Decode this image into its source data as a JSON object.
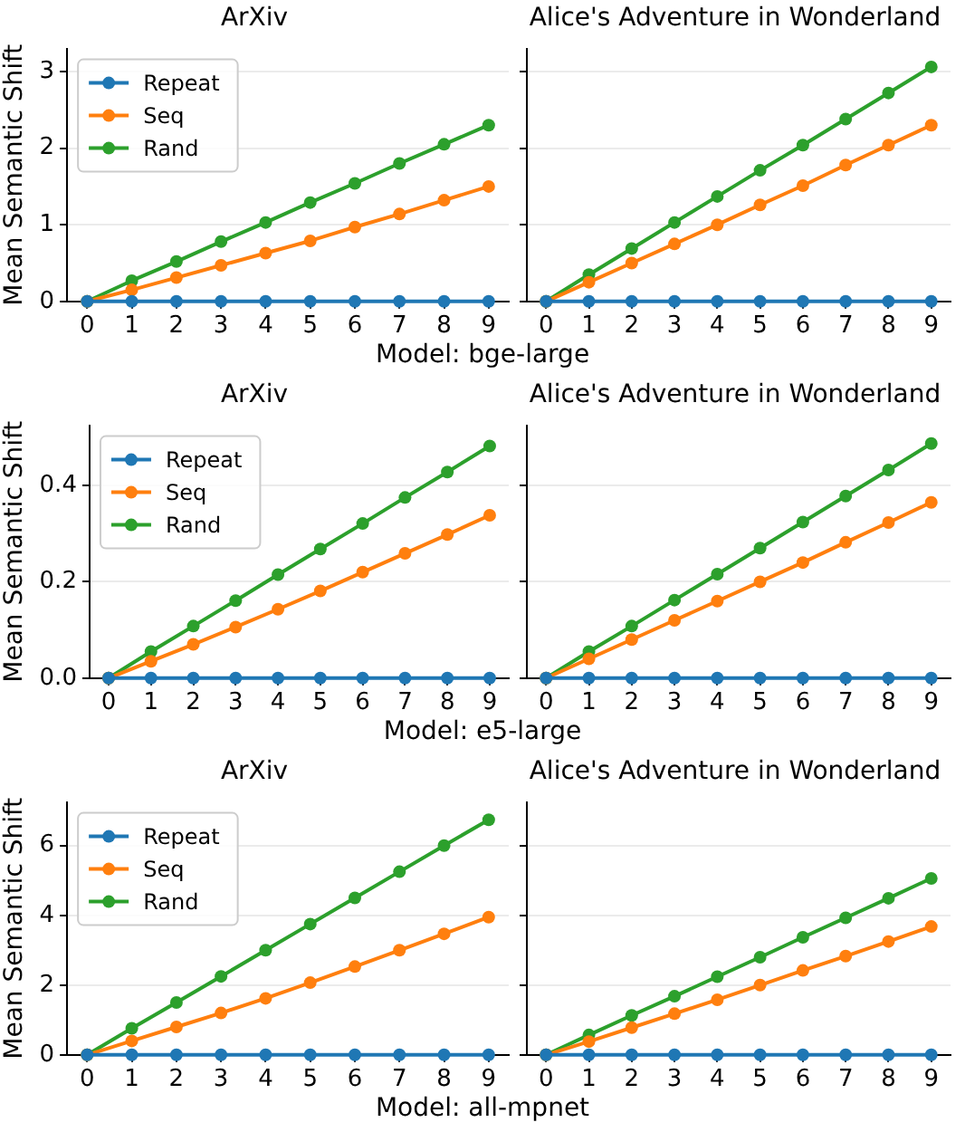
{
  "chart_data": [
    {
      "type": "line",
      "title": "ArXiv",
      "xlabel": "Model: bge-large",
      "ylabel": "Mean Semantic Shift",
      "x": [
        0,
        1,
        2,
        3,
        4,
        5,
        6,
        7,
        8,
        9
      ],
      "xlim": [
        -0.45,
        9.45
      ],
      "xticks": [
        0,
        1,
        2,
        3,
        4,
        5,
        6,
        7,
        8,
        9
      ],
      "ylim": [
        0,
        3.3
      ],
      "yticks": [
        0,
        1,
        2,
        3
      ],
      "grid": "y",
      "legend": "top left",
      "marker": "circle",
      "line_style": "solid",
      "series": [
        {
          "name": "Repeat",
          "color": "#1f77b4",
          "values": [
            0,
            0,
            0,
            0,
            0,
            0,
            0,
            0,
            0,
            0
          ]
        },
        {
          "name": "Seq",
          "color": "#ff7f0e",
          "values": [
            0,
            0.15,
            0.31,
            0.47,
            0.63,
            0.79,
            0.97,
            1.14,
            1.32,
            1.5
          ]
        },
        {
          "name": "Rand",
          "color": "#2ca02c",
          "values": [
            0,
            0.27,
            0.52,
            0.78,
            1.03,
            1.29,
            1.54,
            1.8,
            2.05,
            2.3
          ]
        }
      ]
    },
    {
      "type": "line",
      "title": "Alice's Adventure in Wonderland",
      "x": [
        0,
        1,
        2,
        3,
        4,
        5,
        6,
        7,
        8,
        9
      ],
      "xlim": [
        -0.45,
        9.45
      ],
      "xticks": [
        0,
        1,
        2,
        3,
        4,
        5,
        6,
        7,
        8,
        9
      ],
      "ylim": [
        0,
        3.3
      ],
      "yticks": [
        0,
        1,
        2,
        3
      ],
      "grid": "y",
      "tick_labels": "x",
      "marker": "circle",
      "line_style": "solid",
      "series": [
        {
          "color": "#1f77b4",
          "values": [
            0,
            0,
            0,
            0,
            0,
            0,
            0,
            0,
            0,
            0
          ]
        },
        {
          "color": "#ff7f0e",
          "values": [
            0,
            0.25,
            0.5,
            0.75,
            1.0,
            1.26,
            1.51,
            1.78,
            2.04,
            2.3
          ]
        },
        {
          "color": "#2ca02c",
          "values": [
            0,
            0.35,
            0.69,
            1.03,
            1.37,
            1.71,
            2.04,
            2.38,
            2.72,
            3.06
          ]
        }
      ]
    },
    {
      "type": "line",
      "title": "ArXiv",
      "xlabel": "Model: e5-large",
      "ylabel": "Mean Semantic Shift",
      "x": [
        0,
        1,
        2,
        3,
        4,
        5,
        6,
        7,
        8,
        9
      ],
      "xlim": [
        -0.45,
        9.45
      ],
      "xticks": [
        0,
        1,
        2,
        3,
        4,
        5,
        6,
        7,
        8,
        9
      ],
      "ylim": [
        0,
        0.525
      ],
      "yticks": [
        {
          "value": 0,
          "label": "0.0"
        },
        {
          "value": 0.2,
          "label": "0.2"
        },
        {
          "value": 0.4,
          "label": "0.4"
        }
      ],
      "grid": "y",
      "legend": "top left",
      "marker": "circle",
      "line_style": "solid",
      "series": [
        {
          "name": "Repeat",
          "color": "#1f77b4",
          "values": [
            0,
            0,
            0,
            0,
            0,
            0,
            0,
            0,
            0,
            0
          ]
        },
        {
          "name": "Seq",
          "color": "#ff7f0e",
          "values": [
            0,
            0.035,
            0.07,
            0.106,
            0.143,
            0.181,
            0.22,
            0.259,
            0.298,
            0.338
          ]
        },
        {
          "name": "Rand",
          "color": "#2ca02c",
          "values": [
            0,
            0.055,
            0.108,
            0.161,
            0.215,
            0.268,
            0.321,
            0.375,
            0.428,
            0.482
          ]
        }
      ]
    },
    {
      "type": "line",
      "title": "Alice's Adventure in Wonderland",
      "x": [
        0,
        1,
        2,
        3,
        4,
        5,
        6,
        7,
        8,
        9
      ],
      "xlim": [
        -0.45,
        9.45
      ],
      "xticks": [
        0,
        1,
        2,
        3,
        4,
        5,
        6,
        7,
        8,
        9
      ],
      "ylim": [
        0,
        0.525
      ],
      "yticks": [
        0,
        0.2,
        0.4
      ],
      "grid": "y",
      "tick_labels": "x",
      "marker": "circle",
      "line_style": "solid",
      "series": [
        {
          "color": "#1f77b4",
          "values": [
            0,
            0,
            0,
            0,
            0,
            0,
            0,
            0,
            0,
            0
          ]
        },
        {
          "color": "#ff7f0e",
          "values": [
            0,
            0.04,
            0.08,
            0.12,
            0.16,
            0.2,
            0.24,
            0.282,
            0.323,
            0.365
          ]
        },
        {
          "color": "#2ca02c",
          "values": [
            0,
            0.055,
            0.108,
            0.162,
            0.216,
            0.27,
            0.324,
            0.378,
            0.432,
            0.487
          ]
        }
      ]
    },
    {
      "type": "line",
      "title": "ArXiv",
      "xlabel": "Model: all-mpnet",
      "ylabel": "Mean Semantic Shift",
      "x": [
        0,
        1,
        2,
        3,
        4,
        5,
        6,
        7,
        8,
        9
      ],
      "xlim": [
        -0.45,
        9.45
      ],
      "xticks": [
        0,
        1,
        2,
        3,
        4,
        5,
        6,
        7,
        8,
        9
      ],
      "ylim": [
        0,
        7.25
      ],
      "yticks": [
        0,
        2,
        4,
        6
      ],
      "grid": "y",
      "legend": "top left",
      "marker": "circle",
      "line_style": "solid",
      "series": [
        {
          "name": "Repeat",
          "color": "#1f77b4",
          "values": [
            0,
            0,
            0,
            0,
            0,
            0,
            0,
            0,
            0,
            0
          ]
        },
        {
          "name": "Seq",
          "color": "#ff7f0e",
          "values": [
            0,
            0.4,
            0.8,
            1.2,
            1.62,
            2.07,
            2.53,
            3.0,
            3.47,
            3.95
          ]
        },
        {
          "name": "Rand",
          "color": "#2ca02c",
          "values": [
            0,
            0.76,
            1.5,
            2.25,
            3.0,
            3.75,
            4.5,
            5.25,
            6.0,
            6.74
          ]
        }
      ]
    },
    {
      "type": "line",
      "title": "Alice's Adventure in Wonderland",
      "x": [
        0,
        1,
        2,
        3,
        4,
        5,
        6,
        7,
        8,
        9
      ],
      "xlim": [
        -0.45,
        9.45
      ],
      "xticks": [
        0,
        1,
        2,
        3,
        4,
        5,
        6,
        7,
        8,
        9
      ],
      "ylim": [
        0,
        7.25
      ],
      "yticks": [
        0,
        2,
        4,
        6
      ],
      "grid": "y",
      "tick_labels": "x",
      "marker": "circle",
      "line_style": "solid",
      "series": [
        {
          "color": "#1f77b4",
          "values": [
            0,
            0,
            0,
            0,
            0,
            0,
            0,
            0,
            0,
            0
          ]
        },
        {
          "color": "#ff7f0e",
          "values": [
            0,
            0.38,
            0.78,
            1.18,
            1.58,
            2.0,
            2.42,
            2.83,
            3.25,
            3.68
          ]
        },
        {
          "color": "#2ca02c",
          "values": [
            0,
            0.57,
            1.13,
            1.68,
            2.24,
            2.8,
            3.37,
            3.93,
            4.49,
            5.06
          ]
        }
      ]
    }
  ]
}
